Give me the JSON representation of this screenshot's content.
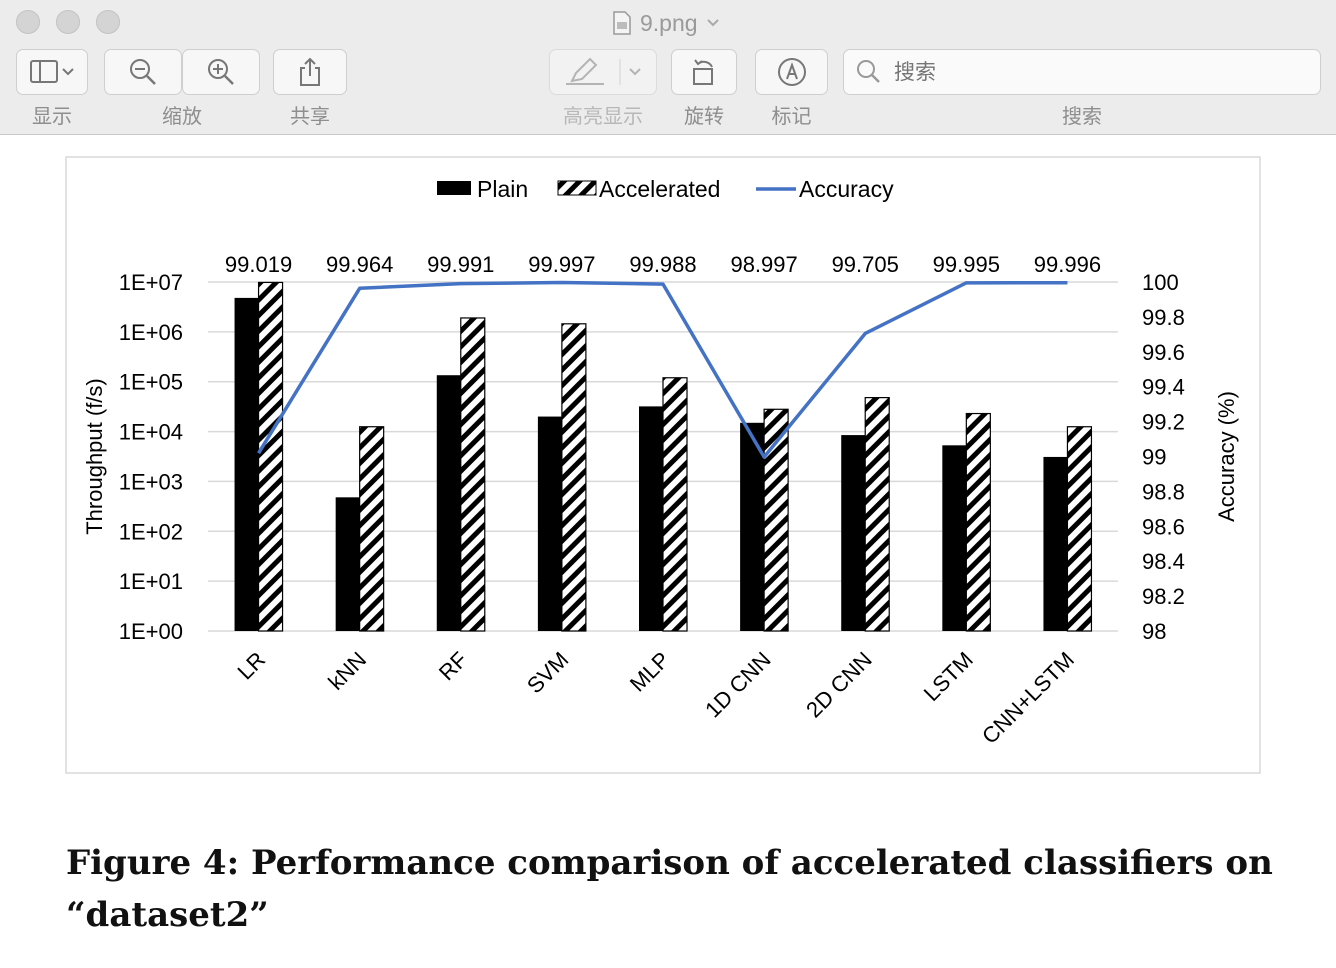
{
  "window": {
    "title": "9.png",
    "toolbar": {
      "display_label": "显示",
      "zoom_label": "缩放",
      "share_label": "共享",
      "highlight_label": "高亮显示",
      "rotate_label": "旋转",
      "markup_label": "标记",
      "search_label": "搜索",
      "search_placeholder": "搜索"
    }
  },
  "caption": "Figure 4: Performance comparison of accelerated classifiers on “dataset2”",
  "chart_data": {
    "type": "bar",
    "categories": [
      "LR",
      "kNN",
      "RF",
      "SVM",
      "MLP",
      "1D CNN",
      "2D CNN",
      "LSTM",
      "CNN+LSTM"
    ],
    "series": [
      {
        "name": "Plain",
        "type": "bar",
        "axis": "left",
        "pattern": "solid",
        "values": [
          4800000,
          480,
          135000,
          20000,
          32000,
          15000,
          8500,
          5300,
          3100
        ]
      },
      {
        "name": "Accelerated",
        "type": "bar",
        "axis": "left",
        "pattern": "diagonal-hatch",
        "values": [
          9800000,
          12500,
          1900000,
          1450000,
          120000,
          28000,
          48000,
          23000,
          12500
        ]
      },
      {
        "name": "Accuracy",
        "type": "line",
        "axis": "right",
        "color": "#4472c4",
        "values": [
          99.019,
          99.964,
          99.991,
          99.997,
          99.988,
          98.997,
          99.705,
          99.995,
          99.996
        ]
      }
    ],
    "data_labels": [
      "99.019",
      "99.964",
      "99.991",
      "99.997",
      "99.988",
      "98.997",
      "99.705",
      "99.995",
      "99.996"
    ],
    "y_left": {
      "label": "Throughput (f/s)",
      "scale": "log",
      "ylim": [
        1,
        10000000
      ],
      "tick_labels": [
        "1E+00",
        "1E+01",
        "1E+02",
        "1E+03",
        "1E+04",
        "1E+05",
        "1E+06",
        "1E+07"
      ]
    },
    "y_right": {
      "label": "Accuracy (%)",
      "scale": "linear",
      "ylim": [
        98,
        100
      ],
      "tick_labels": [
        "98",
        "98.2",
        "98.4",
        "98.6",
        "98.8",
        "99",
        "99.2",
        "99.4",
        "99.6",
        "99.8",
        "100"
      ]
    },
    "legend_position": "top",
    "grid": "horizontal"
  }
}
